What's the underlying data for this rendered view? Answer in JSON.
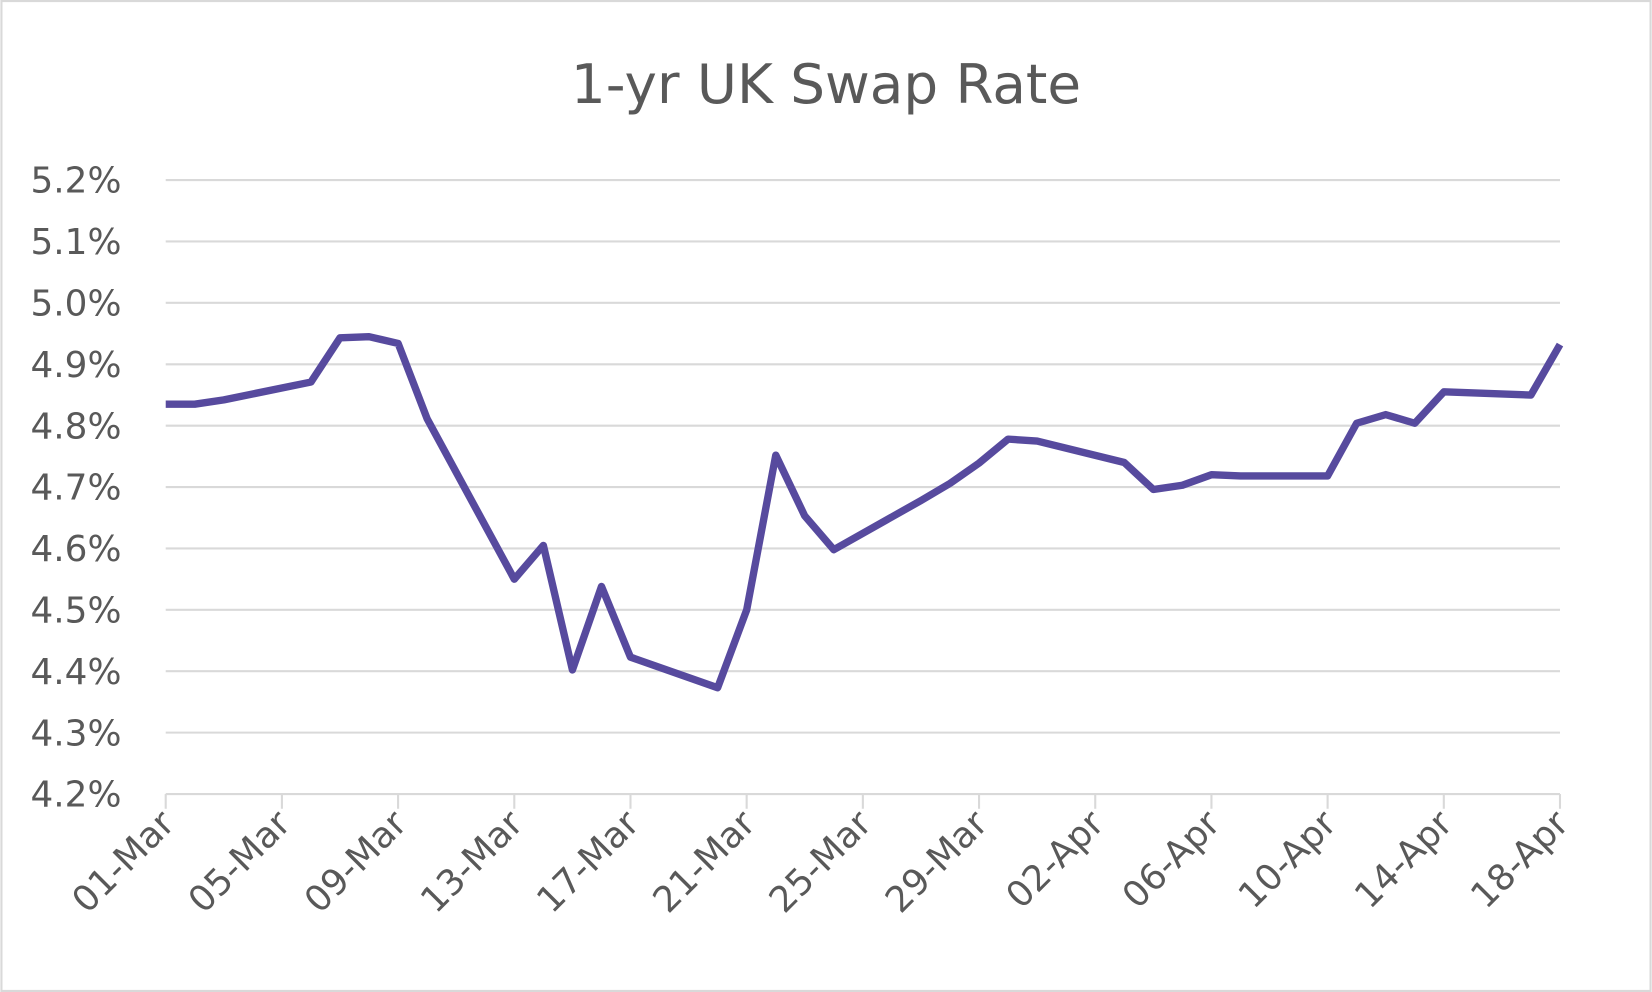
{
  "chart_data": {
    "type": "line",
    "title": "1-yr UK Swap Rate",
    "x": [
      "01-Mar",
      "02-Mar",
      "03-Mar",
      "06-Mar",
      "07-Mar",
      "08-Mar",
      "09-Mar",
      "10-Mar",
      "13-Mar",
      "14-Mar",
      "15-Mar",
      "16-Mar",
      "17-Mar",
      "20-Mar",
      "21-Mar",
      "22-Mar",
      "23-Mar",
      "24-Mar",
      "27-Mar",
      "28-Mar",
      "29-Mar",
      "30-Mar",
      "31-Mar",
      "03-Apr",
      "04-Apr",
      "05-Apr",
      "06-Apr",
      "07-Apr",
      "10-Apr",
      "11-Apr",
      "12-Apr",
      "13-Apr",
      "14-Apr",
      "17-Apr",
      "18-Apr"
    ],
    "series": [
      {
        "name": "1-yr UK Swap Rate",
        "color": "#574a9e",
        "values": [
          4.835,
          4.835,
          4.842,
          4.871,
          4.943,
          4.945,
          4.934,
          4.811,
          4.55,
          4.605,
          4.402,
          4.538,
          4.423,
          4.373,
          4.5,
          4.752,
          4.653,
          4.598,
          4.678,
          4.706,
          4.739,
          4.778,
          4.775,
          4.74,
          4.696,
          4.703,
          4.72,
          4.718,
          4.718,
          4.804,
          4.818,
          4.804,
          4.855,
          4.85,
          4.932
        ]
      }
    ],
    "xlim": [
      "01-Mar",
      "18-Apr"
    ],
    "xticks": [
      "01-Mar",
      "05-Mar",
      "09-Mar",
      "13-Mar",
      "17-Mar",
      "21-Mar",
      "25-Mar",
      "29-Mar",
      "02-Apr",
      "06-Apr",
      "10-Apr",
      "14-Apr",
      "18-Apr"
    ],
    "ylim": [
      4.2,
      5.2
    ],
    "yticks": [
      {
        "value": 4.2,
        "label": "4.2%"
      },
      {
        "value": 4.3,
        "label": "4.3%"
      },
      {
        "value": 4.4,
        "label": "4.4%"
      },
      {
        "value": 4.5,
        "label": "4.5%"
      },
      {
        "value": 4.6,
        "label": "4.6%"
      },
      {
        "value": 4.7,
        "label": "4.7%"
      },
      {
        "value": 4.8,
        "label": "4.8%"
      },
      {
        "value": 4.9,
        "label": "4.9%"
      },
      {
        "value": 5.0,
        "label": "5.0%"
      },
      {
        "value": 5.1,
        "label": "5.1%"
      },
      {
        "value": 5.2,
        "label": "5.2%"
      }
    ],
    "grid": true
  }
}
